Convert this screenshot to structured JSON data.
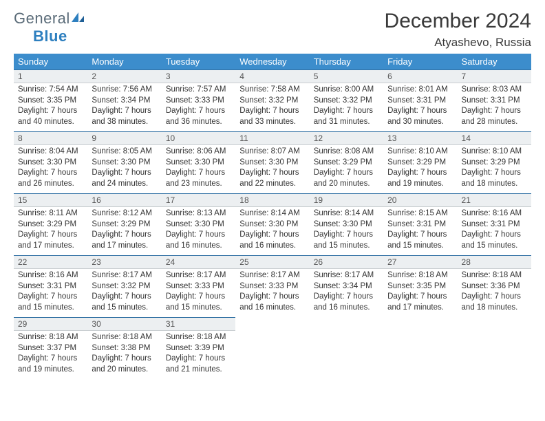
{
  "logo": {
    "part1": "General",
    "part2": "Blue"
  },
  "title": "December 2024",
  "location": "Atyashevo, Russia",
  "colors": {
    "header_bg": "#3c8dcc",
    "daynum_bg": "#eceff1",
    "daynum_border_top": "#2f6fa3",
    "logo_blue": "#2d7fbf",
    "logo_gray": "#5a6b78"
  },
  "weekdays": [
    "Sunday",
    "Monday",
    "Tuesday",
    "Wednesday",
    "Thursday",
    "Friday",
    "Saturday"
  ],
  "weeks": [
    [
      {
        "day": "1",
        "sunrise": "Sunrise: 7:54 AM",
        "sunset": "Sunset: 3:35 PM",
        "dl1": "Daylight: 7 hours",
        "dl2": "and 40 minutes."
      },
      {
        "day": "2",
        "sunrise": "Sunrise: 7:56 AM",
        "sunset": "Sunset: 3:34 PM",
        "dl1": "Daylight: 7 hours",
        "dl2": "and 38 minutes."
      },
      {
        "day": "3",
        "sunrise": "Sunrise: 7:57 AM",
        "sunset": "Sunset: 3:33 PM",
        "dl1": "Daylight: 7 hours",
        "dl2": "and 36 minutes."
      },
      {
        "day": "4",
        "sunrise": "Sunrise: 7:58 AM",
        "sunset": "Sunset: 3:32 PM",
        "dl1": "Daylight: 7 hours",
        "dl2": "and 33 minutes."
      },
      {
        "day": "5",
        "sunrise": "Sunrise: 8:00 AM",
        "sunset": "Sunset: 3:32 PM",
        "dl1": "Daylight: 7 hours",
        "dl2": "and 31 minutes."
      },
      {
        "day": "6",
        "sunrise": "Sunrise: 8:01 AM",
        "sunset": "Sunset: 3:31 PM",
        "dl1": "Daylight: 7 hours",
        "dl2": "and 30 minutes."
      },
      {
        "day": "7",
        "sunrise": "Sunrise: 8:03 AM",
        "sunset": "Sunset: 3:31 PM",
        "dl1": "Daylight: 7 hours",
        "dl2": "and 28 minutes."
      }
    ],
    [
      {
        "day": "8",
        "sunrise": "Sunrise: 8:04 AM",
        "sunset": "Sunset: 3:30 PM",
        "dl1": "Daylight: 7 hours",
        "dl2": "and 26 minutes."
      },
      {
        "day": "9",
        "sunrise": "Sunrise: 8:05 AM",
        "sunset": "Sunset: 3:30 PM",
        "dl1": "Daylight: 7 hours",
        "dl2": "and 24 minutes."
      },
      {
        "day": "10",
        "sunrise": "Sunrise: 8:06 AM",
        "sunset": "Sunset: 3:30 PM",
        "dl1": "Daylight: 7 hours",
        "dl2": "and 23 minutes."
      },
      {
        "day": "11",
        "sunrise": "Sunrise: 8:07 AM",
        "sunset": "Sunset: 3:30 PM",
        "dl1": "Daylight: 7 hours",
        "dl2": "and 22 minutes."
      },
      {
        "day": "12",
        "sunrise": "Sunrise: 8:08 AM",
        "sunset": "Sunset: 3:29 PM",
        "dl1": "Daylight: 7 hours",
        "dl2": "and 20 minutes."
      },
      {
        "day": "13",
        "sunrise": "Sunrise: 8:10 AM",
        "sunset": "Sunset: 3:29 PM",
        "dl1": "Daylight: 7 hours",
        "dl2": "and 19 minutes."
      },
      {
        "day": "14",
        "sunrise": "Sunrise: 8:10 AM",
        "sunset": "Sunset: 3:29 PM",
        "dl1": "Daylight: 7 hours",
        "dl2": "and 18 minutes."
      }
    ],
    [
      {
        "day": "15",
        "sunrise": "Sunrise: 8:11 AM",
        "sunset": "Sunset: 3:29 PM",
        "dl1": "Daylight: 7 hours",
        "dl2": "and 17 minutes."
      },
      {
        "day": "16",
        "sunrise": "Sunrise: 8:12 AM",
        "sunset": "Sunset: 3:29 PM",
        "dl1": "Daylight: 7 hours",
        "dl2": "and 17 minutes."
      },
      {
        "day": "17",
        "sunrise": "Sunrise: 8:13 AM",
        "sunset": "Sunset: 3:30 PM",
        "dl1": "Daylight: 7 hours",
        "dl2": "and 16 minutes."
      },
      {
        "day": "18",
        "sunrise": "Sunrise: 8:14 AM",
        "sunset": "Sunset: 3:30 PM",
        "dl1": "Daylight: 7 hours",
        "dl2": "and 16 minutes."
      },
      {
        "day": "19",
        "sunrise": "Sunrise: 8:14 AM",
        "sunset": "Sunset: 3:30 PM",
        "dl1": "Daylight: 7 hours",
        "dl2": "and 15 minutes."
      },
      {
        "day": "20",
        "sunrise": "Sunrise: 8:15 AM",
        "sunset": "Sunset: 3:31 PM",
        "dl1": "Daylight: 7 hours",
        "dl2": "and 15 minutes."
      },
      {
        "day": "21",
        "sunrise": "Sunrise: 8:16 AM",
        "sunset": "Sunset: 3:31 PM",
        "dl1": "Daylight: 7 hours",
        "dl2": "and 15 minutes."
      }
    ],
    [
      {
        "day": "22",
        "sunrise": "Sunrise: 8:16 AM",
        "sunset": "Sunset: 3:31 PM",
        "dl1": "Daylight: 7 hours",
        "dl2": "and 15 minutes."
      },
      {
        "day": "23",
        "sunrise": "Sunrise: 8:17 AM",
        "sunset": "Sunset: 3:32 PM",
        "dl1": "Daylight: 7 hours",
        "dl2": "and 15 minutes."
      },
      {
        "day": "24",
        "sunrise": "Sunrise: 8:17 AM",
        "sunset": "Sunset: 3:33 PM",
        "dl1": "Daylight: 7 hours",
        "dl2": "and 15 minutes."
      },
      {
        "day": "25",
        "sunrise": "Sunrise: 8:17 AM",
        "sunset": "Sunset: 3:33 PM",
        "dl1": "Daylight: 7 hours",
        "dl2": "and 16 minutes."
      },
      {
        "day": "26",
        "sunrise": "Sunrise: 8:17 AM",
        "sunset": "Sunset: 3:34 PM",
        "dl1": "Daylight: 7 hours",
        "dl2": "and 16 minutes."
      },
      {
        "day": "27",
        "sunrise": "Sunrise: 8:18 AM",
        "sunset": "Sunset: 3:35 PM",
        "dl1": "Daylight: 7 hours",
        "dl2": "and 17 minutes."
      },
      {
        "day": "28",
        "sunrise": "Sunrise: 8:18 AM",
        "sunset": "Sunset: 3:36 PM",
        "dl1": "Daylight: 7 hours",
        "dl2": "and 18 minutes."
      }
    ],
    [
      {
        "day": "29",
        "sunrise": "Sunrise: 8:18 AM",
        "sunset": "Sunset: 3:37 PM",
        "dl1": "Daylight: 7 hours",
        "dl2": "and 19 minutes."
      },
      {
        "day": "30",
        "sunrise": "Sunrise: 8:18 AM",
        "sunset": "Sunset: 3:38 PM",
        "dl1": "Daylight: 7 hours",
        "dl2": "and 20 minutes."
      },
      {
        "day": "31",
        "sunrise": "Sunrise: 8:18 AM",
        "sunset": "Sunset: 3:39 PM",
        "dl1": "Daylight: 7 hours",
        "dl2": "and 21 minutes."
      },
      {
        "empty": true
      },
      {
        "empty": true
      },
      {
        "empty": true
      },
      {
        "empty": true
      }
    ]
  ]
}
